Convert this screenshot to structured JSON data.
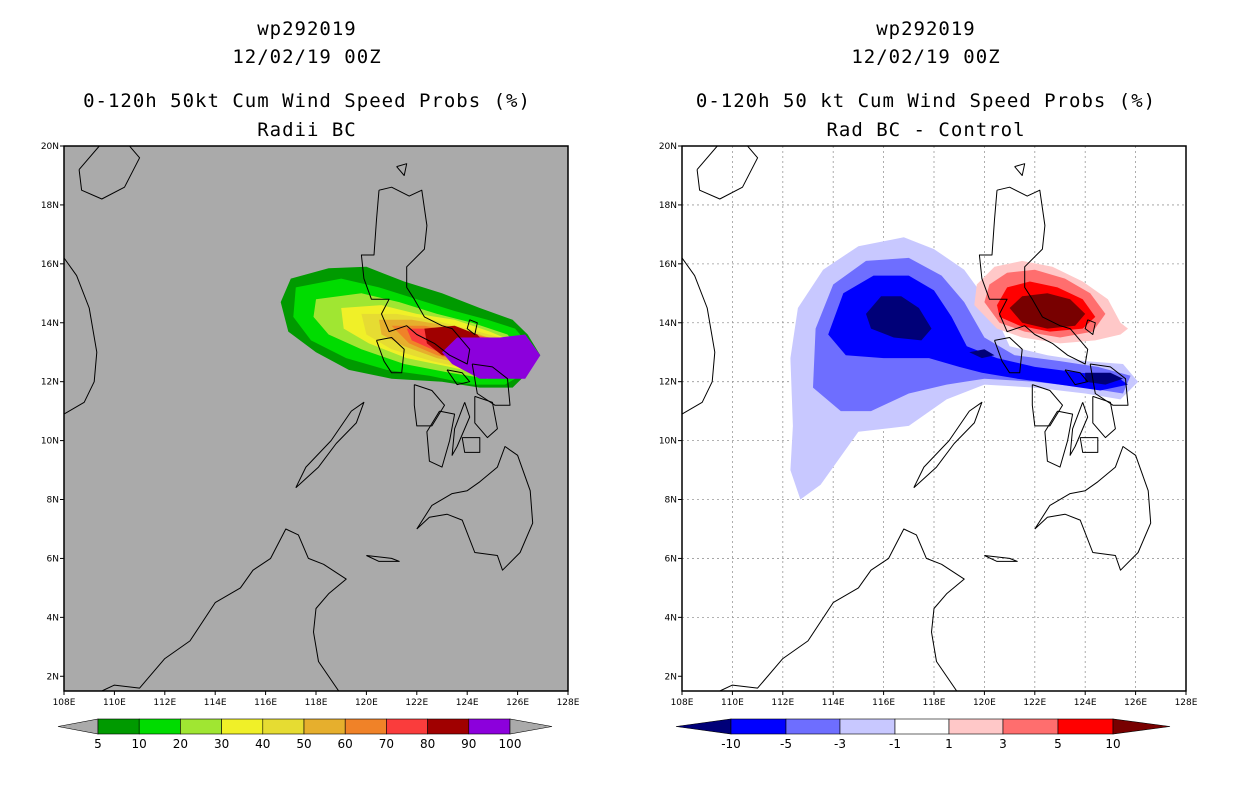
{
  "left_panel": {
    "storm_id": "wp292019",
    "datetime": "12/02/19 00Z",
    "title": "0-120h 50kt Cum Wind Speed Probs (%)",
    "subtitle": "Radii BC",
    "colorbar_labels": [
      "5",
      "10",
      "20",
      "30",
      "40",
      "50",
      "60",
      "70",
      "80",
      "90",
      "100"
    ],
    "colors": [
      "#009a00",
      "#00dc00",
      "#a0e632",
      "#f0f028",
      "#e6dc32",
      "#e6af2d",
      "#f08228",
      "#fa3c3c",
      "#a00000",
      "#8c00dc"
    ],
    "background": "#aaaaaa"
  },
  "right_panel": {
    "storm_id": "wp292019",
    "datetime": "12/02/19 00Z",
    "title": "0-120h 50 kt Cum Wind Speed Probs (%)",
    "subtitle": "Rad BC - Control",
    "colorbar_labels": [
      "-10",
      "-5",
      "-3",
      "-1",
      "1",
      "3",
      "5",
      "10"
    ],
    "colors": [
      "#000078",
      "#0000ff",
      "#6e6eff",
      "#c8c8ff",
      "#ffffff",
      "#ffc8c8",
      "#ff6e6e",
      "#ff0000",
      "#780000"
    ]
  },
  "axes": {
    "x_ticks": [
      "108E",
      "110E",
      "112E",
      "114E",
      "116E",
      "118E",
      "120E",
      "122E",
      "124E",
      "126E",
      "128E"
    ],
    "y_ticks": [
      "20N",
      "18N",
      "16N",
      "14N",
      "12N",
      "10N",
      "8N",
      "6N",
      "4N",
      "2N"
    ],
    "lon_range": [
      108,
      128
    ],
    "lat_range": [
      1.5,
      20
    ]
  }
}
